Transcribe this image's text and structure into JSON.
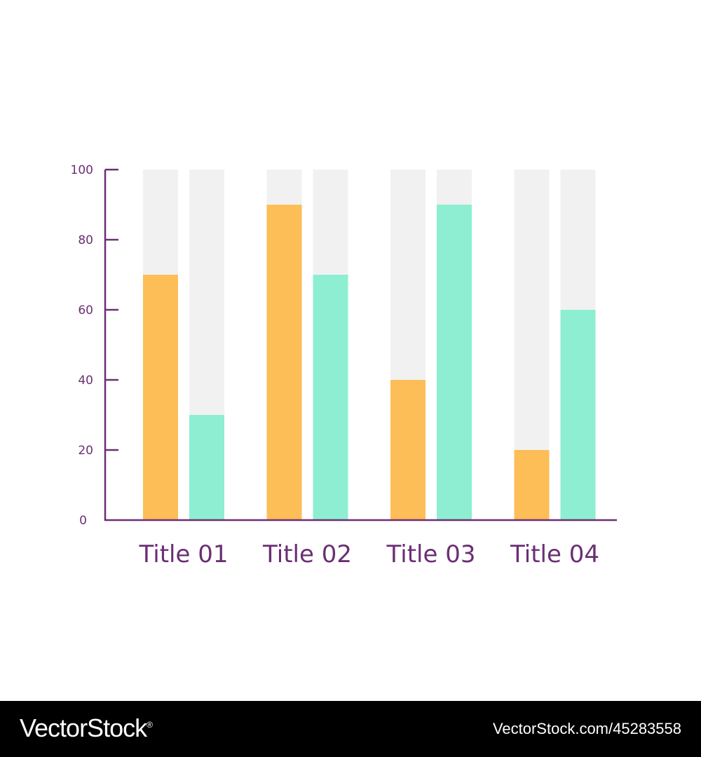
{
  "chart_data": {
    "type": "bar",
    "categories": [
      "Title 01",
      "Title 02",
      "Title 03",
      "Title 04"
    ],
    "series": [
      {
        "values": [
          70,
          90,
          40,
          20
        ],
        "color": "#fdbd57"
      },
      {
        "values": [
          30,
          70,
          90,
          60
        ],
        "color": "#8deed2"
      }
    ],
    "ylim": [
      0,
      100
    ],
    "yticks": [
      0,
      20,
      40,
      60,
      80,
      100
    ],
    "ytick_labels": [
      "0",
      "20",
      "40",
      "60",
      "80",
      "100"
    ],
    "background_track_color": "#f1f1f1",
    "axis_color": "#6b2f74",
    "grid": false,
    "legend": "none"
  },
  "watermark": {
    "brand": "VectorStock",
    "brand_mark": "®",
    "url": "VectorStock.com/45283558"
  }
}
